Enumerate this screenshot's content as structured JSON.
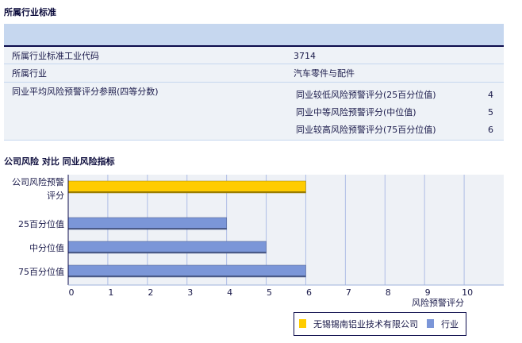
{
  "section1": {
    "title": "所属行业标准",
    "rows": [
      {
        "label": "所属行业标准工业代码",
        "value": "3714"
      },
      {
        "label": "所属行业",
        "value": "汽车零件与配件"
      },
      {
        "label": "同业平均风险预警评分参照(四等分数)",
        "sub": [
          {
            "label": "同业较低风险预警评分(25百分位值)",
            "value": "4"
          },
          {
            "label": "同业中等风险预警评分(中位值)",
            "value": "5"
          },
          {
            "label": "同业较高风险预警评分(75百分位值)",
            "value": "6"
          }
        ]
      }
    ]
  },
  "section2": {
    "title": "公司风险 对比 同业风险指标"
  },
  "chart_data": {
    "type": "bar",
    "orientation": "horizontal",
    "categories": [
      "公司风险预警评分",
      "25百分位值",
      "中分位值",
      "75百分位值"
    ],
    "values": [
      6,
      4,
      5,
      6
    ],
    "series_of": [
      "company",
      "industry",
      "industry",
      "industry"
    ],
    "xlabel": "风险预警评分",
    "xlim": [
      0,
      11
    ],
    "xticks": [
      "0",
      "1",
      "2",
      "3",
      "4",
      "5",
      "6",
      "7",
      "8",
      "9",
      "10"
    ],
    "grid": true,
    "legend_position": "bottom-right",
    "legend": [
      {
        "name": "无锡锡南铝业技术有限公司",
        "color": "#ffcc00"
      },
      {
        "name": "行业",
        "color": "#7b96d8"
      }
    ]
  }
}
